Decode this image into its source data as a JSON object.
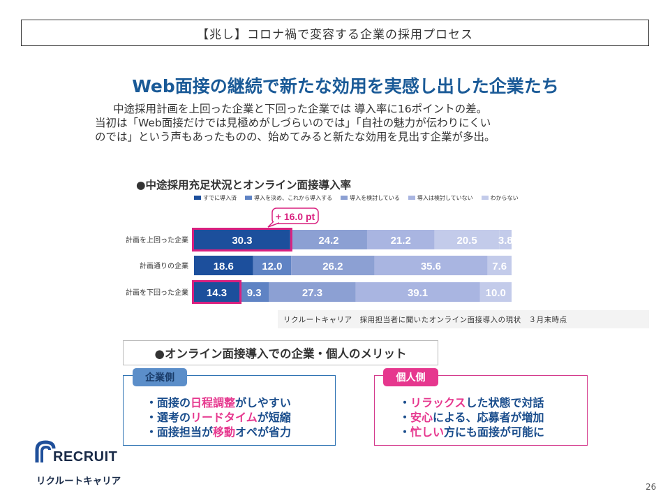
{
  "header": {
    "title": "【兆し】コロナ禍で変容する企業の採用プロセス"
  },
  "main_title": "Web面接の継続で新たな効用を実感し出した企業たち",
  "subtitle": [
    "中途採用計画を上回った企業と下回った企業では 導入率に16ポイントの差。",
    "当初は「Web面接だけでは見極めがしづらいのでは」「自社の魅力が伝わりにくい",
    "のでは」という声もあったものの、始めてみると新たな効用を見出す企業が多出。"
  ],
  "chart_title": "●中途採用充足状況とオンライン面接導入率",
  "chart_data": {
    "type": "bar",
    "orientation": "horizontal-stacked",
    "categories": [
      "計画を上回った企業",
      "計画通りの企業",
      "計画を下回った企業"
    ],
    "series": [
      {
        "name": "すでに導入済",
        "color": "#1c4f9c",
        "values": [
          30.3,
          18.6,
          14.3
        ]
      },
      {
        "name": "導入を決め、これから導入する",
        "color": "#5f83c4",
        "values": [
          0,
          12.0,
          9.3
        ]
      },
      {
        "name": "導入を検討している",
        "color": "#8ca0d3",
        "values": [
          24.2,
          26.2,
          27.3
        ]
      },
      {
        "name": "導入は検討していない",
        "color": "#a9b5e1",
        "values": [
          21.2,
          35.6,
          39.1
        ]
      },
      {
        "name": "わからない",
        "color": "#c3cbea",
        "values": [
          20.5,
          7.6,
          10.0
        ]
      }
    ],
    "extra_segment": {
      "row": 0,
      "value": 3.8
    },
    "annotation": "+ 16.0 pt",
    "highlight_color": "#d9207f"
  },
  "source_note": "リクルートキャリア　採用担当者に聞いたオンライン面接導入の現状　３月末時点",
  "merit_title": "●オンライン面接導入での企業・個人のメリット",
  "company": {
    "tag": "企業側",
    "items": [
      {
        "pre": "・面接の",
        "hl": "日程調整",
        "post": "がしやすい"
      },
      {
        "pre": "・選考の",
        "hl": "リードタイム",
        "post": "が短縮"
      },
      {
        "pre": "・面接担当が",
        "hl": "移動",
        "post": "オペが省力"
      }
    ]
  },
  "person": {
    "tag": "個人側",
    "items": [
      {
        "pre": "・",
        "hl": "リラックス",
        "post": "した状態で対話"
      },
      {
        "pre": "・",
        "hl": "安心",
        "post": "による、応募者が増加"
      },
      {
        "pre": "・",
        "hl": "忙しい",
        "post": "方にも面接が可能に"
      }
    ]
  },
  "logo": {
    "name": "RECRUIT",
    "sub": "リクルートキャリア"
  },
  "page_number": "26"
}
